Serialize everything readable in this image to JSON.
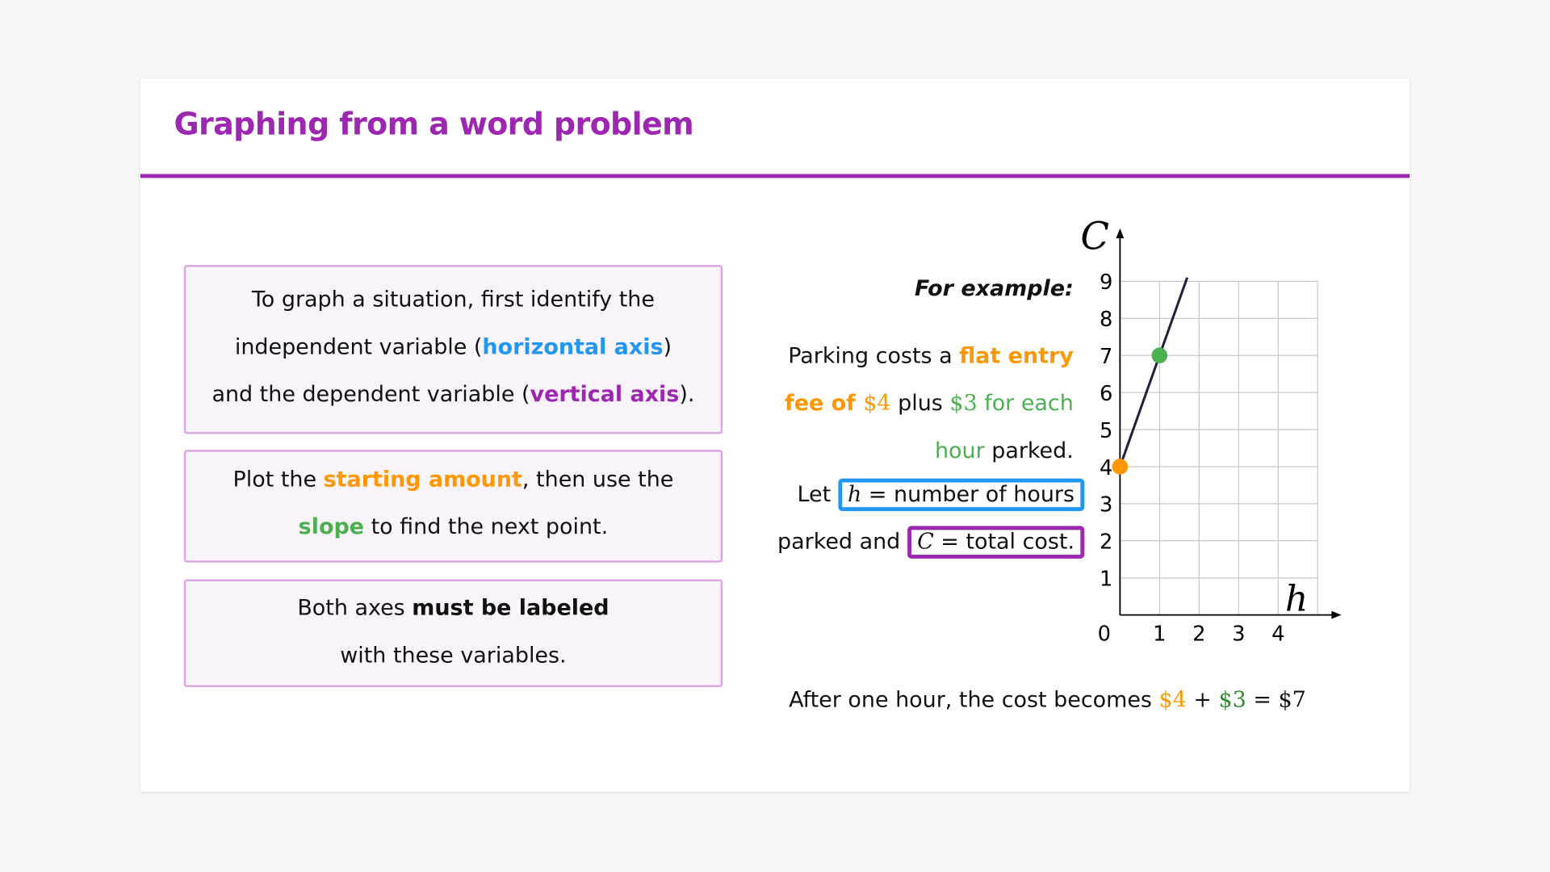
{
  "title": "Graphing from a word problem",
  "boxes": {
    "box1": {
      "l1": "To graph a situation, first identify the",
      "l2a": "independent variable (",
      "l2b": "horizontal axis",
      "l2c": ")",
      "l3a": "and the dependent variable (",
      "l3b": "vertical axis",
      "l3c": ")."
    },
    "box2": {
      "l1a": "Plot the ",
      "l1b": "starting amount",
      "l1c": ", then use the",
      "l2a": "slope",
      "l2b": " to find the next point."
    },
    "box3": {
      "l1a": "Both axes ",
      "l1b": "must be labeled",
      "l2": "with these variables."
    }
  },
  "example": {
    "heading": "For example:",
    "l1a": "Parking costs a ",
    "l1b": "flat entry",
    "l2a": "fee of ",
    "l2b": "$4",
    "l2c": " plus ",
    "l2d": "$3",
    "l2e": " for each",
    "l3a": "hour",
    "l3b": " parked.",
    "l4a": "Let ",
    "l4b": "h",
    "l4c": " = number of hours",
    "l5a": "parked and ",
    "l5b": "C",
    "l5c": " = total cost.",
    "footer_a": "After one hour, the cost becomes ",
    "footer_b": "$4",
    "footer_c": " + ",
    "footer_d": "$3",
    "footer_e": " = ",
    "footer_f": "$7"
  },
  "colors": {
    "accent": "#9c27b0",
    "blue": "#2196f3",
    "orange": "#ff9800",
    "green": "#4caf50",
    "box_border": "#dba6e3"
  },
  "chart_data": {
    "type": "line",
    "xlabel": "h",
    "ylabel": "C",
    "xlim": [
      0,
      5
    ],
    "ylim": [
      0,
      9
    ],
    "x_ticks": [
      "0",
      "1",
      "2",
      "3",
      "4"
    ],
    "y_ticks": [
      "1",
      "2",
      "3",
      "4",
      "5",
      "6",
      "7",
      "8",
      "9"
    ],
    "grid": true,
    "line": {
      "slope": 3,
      "intercept": 4,
      "x_range": [
        0,
        1.7
      ]
    },
    "points": [
      {
        "x": 0,
        "y": 4,
        "color": "#ff9800"
      },
      {
        "x": 1,
        "y": 7,
        "color": "#4caf50"
      }
    ]
  }
}
